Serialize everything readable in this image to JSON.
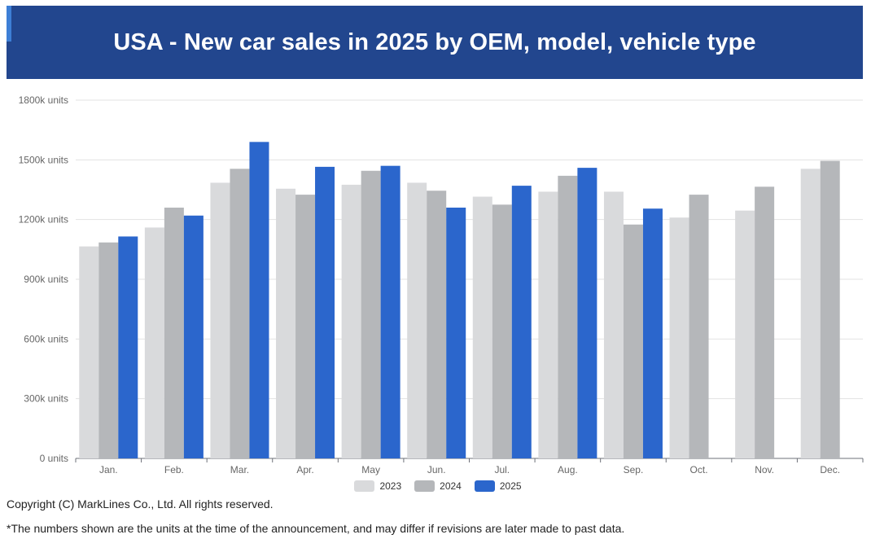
{
  "header": {
    "title": "USA - New car sales in 2025 by OEM, model, vehicle type"
  },
  "colors": {
    "banner": "#22468e",
    "2023": "#d9dadc",
    "2024": "#b5b7ba",
    "2025": "#2b66cc",
    "grid": "#e3e3e3"
  },
  "chart_data": {
    "type": "bar",
    "categories": [
      "Jan.",
      "Feb.",
      "Mar.",
      "Apr.",
      "May",
      "Jun.",
      "Jul.",
      "Aug.",
      "Sep.",
      "Oct.",
      "Nov.",
      "Dec."
    ],
    "series": [
      {
        "name": "2023",
        "values": [
          1065,
          1160,
          1385,
          1355,
          1375,
          1385,
          1315,
          1340,
          1340,
          1210,
          1245,
          1455
        ]
      },
      {
        "name": "2024",
        "values": [
          1085,
          1260,
          1455,
          1325,
          1445,
          1345,
          1275,
          1420,
          1175,
          1325,
          1365,
          1495
        ]
      },
      {
        "name": "2025",
        "values": [
          1115,
          1220,
          1590,
          1465,
          1470,
          1260,
          1370,
          1460,
          1255,
          null,
          null,
          null
        ]
      }
    ],
    "y_ticks": [
      "0 units",
      "300k units",
      "600k units",
      "900k units",
      "1200k units",
      "1500k units",
      "1800k units"
    ],
    "ylim": [
      0,
      1800
    ],
    "unit": "k units",
    "grid": true,
    "legend": "bottom-center"
  },
  "legend": {
    "items": [
      "2023",
      "2024",
      "2025"
    ]
  },
  "footer": {
    "copyright": "Copyright (C) MarkLines Co., Ltd. All rights reserved.",
    "note": "*The numbers shown are the units at the time of the announcement, and may differ if revisions are later made to past data."
  }
}
